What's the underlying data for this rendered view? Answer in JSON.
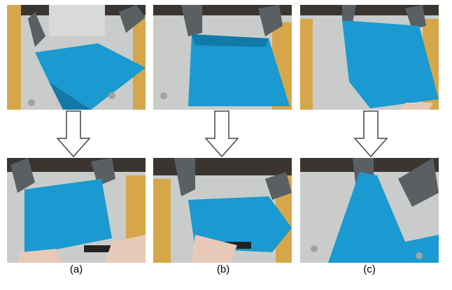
{
  "figure": {
    "captions": [
      "(a)",
      "(b)",
      "(c)"
    ],
    "colors": {
      "cloth": "#1a9ad0",
      "cloth_shadow": "#127aa8",
      "table": "#c9ccca",
      "table_dark": "#9fa3a2",
      "wood": "#d6a74a",
      "robot": "#5a5f63",
      "background": "#3a3530",
      "skin": "#e8c9b8",
      "arrow_stroke": "#444444"
    },
    "columns": [
      {
        "before_icon": "cloth-diagonal-photo",
        "after_icon": "cloth-flat-hands-photo"
      },
      {
        "before_icon": "cloth-square-photo",
        "after_icon": "cloth-folded-hands-photo"
      },
      {
        "before_icon": "cloth-square-photo",
        "after_icon": "cloth-pulled-photo"
      }
    ]
  }
}
